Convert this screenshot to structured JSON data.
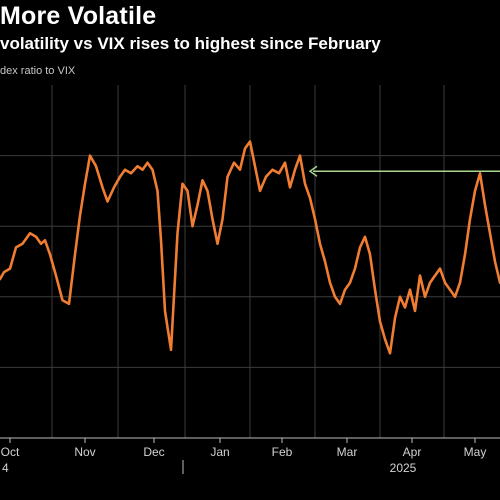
{
  "title": "More Volatile",
  "subtitle": "volatility vs VIX rises to highest since February",
  "series_label": "dex ratio to VIX",
  "colors": {
    "background": "#000000",
    "line": "#f07d32",
    "annotation": "#a8d890",
    "grid": "#3c3c3c"
  },
  "chart_data": {
    "type": "line",
    "title": "More Volatile",
    "subtitle": "volatility vs VIX rises to highest since February",
    "ylabel": "",
    "xlabel": "",
    "grid": true,
    "x_ticks": [
      "Oct",
      "Nov",
      "Dec",
      "Jan",
      "Feb",
      "Mar",
      "Apr",
      "May"
    ],
    "year_labels": [
      "4",
      "2025"
    ],
    "y_range": [
      0,
      100
    ],
    "annotation": {
      "type": "arrow",
      "y": 75,
      "x_start": "Feb",
      "x_end": "May"
    },
    "series": [
      {
        "x": [
          0,
          0.8,
          2.0,
          3.2,
          4.5,
          6.0,
          7.2,
          8.2,
          9.0,
          10.0,
          11.2,
          12.5,
          13.8,
          15.0,
          16.0,
          17.0,
          18.0,
          19.2,
          20.5,
          21.5,
          22.8,
          24.0,
          25.0,
          26.2,
          27.5,
          28.5,
          29.5,
          30.5,
          31.5,
          32.2,
          33.0,
          34.2,
          35.5,
          36.5,
          37.5,
          38.5,
          39.5,
          40.5,
          41.5,
          42.5,
          43.5,
          44.5,
          45.5,
          46.8,
          48.0,
          49.0,
          50.0,
          51.0,
          52.0,
          53.2,
          54.5,
          55.8,
          57.0,
          58.0,
          59.0,
          60.0,
          61.0,
          62.0,
          63.0,
          64.0,
          65.0,
          66.0,
          67.0,
          68.0,
          69.0,
          70.0,
          71.0,
          72.0,
          73.0,
          74.0,
          75.0,
          76.0,
          77.0,
          78.0,
          79.0,
          80.0,
          81.0,
          82.0,
          83.0,
          84.0,
          85.0,
          86.0,
          87.0,
          88.0,
          89.0,
          90.0,
          91.0,
          92.0,
          93.0,
          94.0,
          95.0,
          96.0,
          97.0,
          98.0,
          99.0,
          100.0
        ],
        "y": [
          45,
          47,
          48,
          54,
          55,
          58,
          57,
          55,
          56,
          52,
          46,
          39,
          38,
          52,
          63,
          72,
          80,
          77,
          71,
          67,
          71,
          74,
          76,
          75,
          77,
          76,
          78,
          76,
          70,
          56,
          36,
          25,
          58,
          72,
          70,
          60,
          66,
          73,
          70,
          62,
          55,
          62,
          74,
          78,
          76,
          82,
          84,
          77,
          70,
          74,
          76,
          75,
          78,
          71,
          76,
          80,
          72,
          68,
          62,
          55,
          50,
          44,
          40,
          38,
          42,
          44,
          48,
          54,
          57,
          52,
          42,
          33,
          28,
          24,
          34,
          40,
          37,
          42,
          36,
          46,
          40,
          44,
          46,
          48,
          44,
          42,
          40,
          44,
          52,
          62,
          70,
          75,
          66,
          58,
          50,
          44
        ]
      }
    ]
  }
}
